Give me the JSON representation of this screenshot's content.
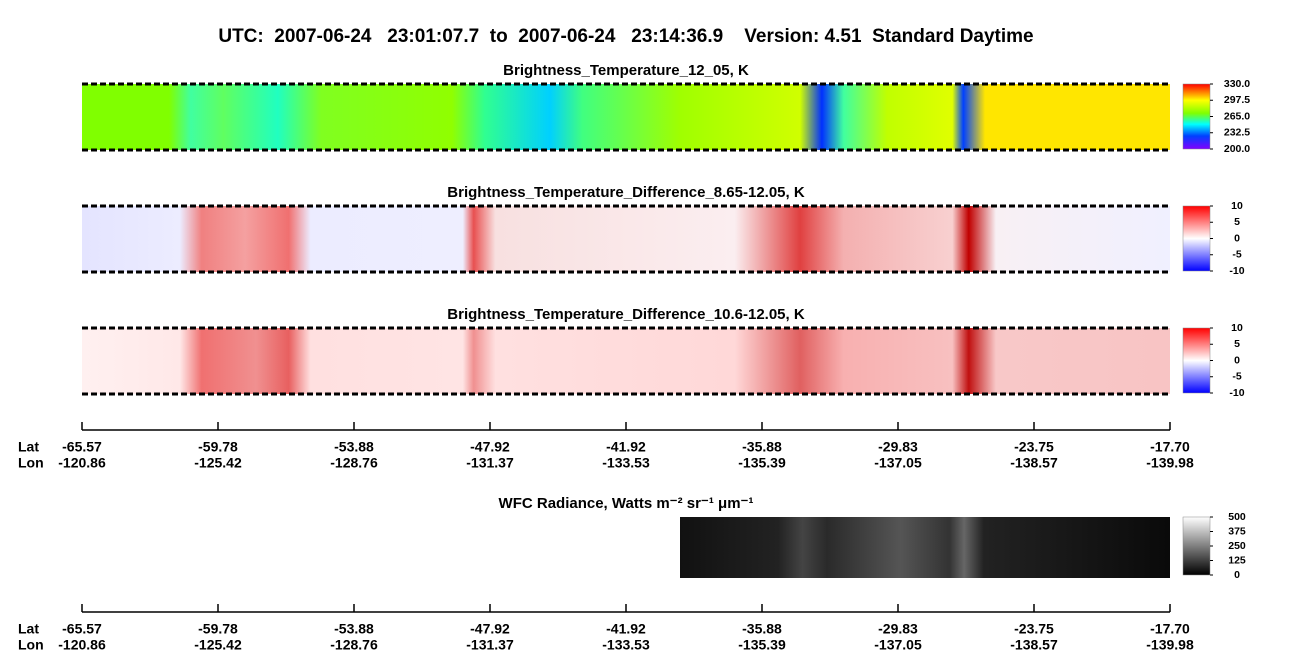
{
  "title": "UTC:  2007-06-24   23:01:07.7  to  2007-06-24   23:14:36.9    Version: 4.51  Standard Daytime",
  "chart_data": [
    {
      "type": "heatmap",
      "title": "Brightness_Temperature_12_05, K",
      "colormap": "rainbow",
      "zlim": [
        200,
        330
      ],
      "zticks": [
        {
          "value": 330,
          "label": "330.0"
        },
        297.5,
        {
          "value": 265,
          "label": "265.0"
        },
        232.5,
        {
          "value": 200,
          "label": "200.0"
        }
      ]
    },
    {
      "type": "heatmap",
      "title": "Brightness_Temperature_Difference_8.65-12.05, K",
      "colormap": "bwr",
      "zlim": [
        -10,
        10
      ],
      "zticks": [
        10,
        5,
        0,
        -5,
        -10
      ]
    },
    {
      "type": "heatmap",
      "title": "Brightness_Temperature_Difference_10.6-12.05, K",
      "colormap": "bwr",
      "zlim": [
        -10,
        10
      ],
      "zticks": [
        10,
        5,
        0,
        -5,
        -10
      ]
    },
    {
      "type": "heatmap",
      "title": "WFC Radiance, Watts m⁻² sr⁻¹ μm⁻¹",
      "colormap": "gray",
      "zlim": [
        0,
        500
      ],
      "zticks": [
        500,
        375,
        250,
        125,
        0
      ]
    }
  ],
  "track_axis": {
    "row_labels": [
      "Lat",
      "Lon"
    ],
    "lat": [
      "-65.57",
      "-59.78",
      "-53.88",
      "-47.92",
      "-41.92",
      "-35.88",
      "-29.83",
      "-23.75",
      "-17.70"
    ],
    "lon": [
      "-120.86",
      "-125.42",
      "-128.76",
      "-131.37",
      "-133.53",
      "-135.39",
      "-137.05",
      "-138.57",
      "-139.98"
    ]
  }
}
